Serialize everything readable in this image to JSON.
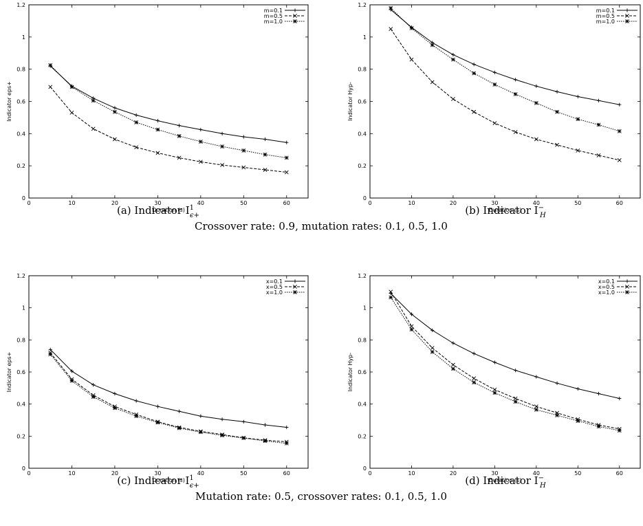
{
  "chart_data": [
    {
      "type": "line",
      "caption": "(a) Indicator I",
      "caption_sup": "1",
      "caption_sub": "ϵ+",
      "xlabel": "Duration (s)",
      "ylabel": "Indicator eps+",
      "xlim": [
        0,
        65
      ],
      "ylim": [
        0,
        1.2
      ],
      "xticks": [
        "0",
        "10",
        "20",
        "30",
        "40",
        "50",
        "60"
      ],
      "yticks": [
        "0",
        "0.2",
        "0.4",
        "0.6",
        "0.8",
        "1",
        "1.2"
      ],
      "legend_position": "top-right",
      "x": [
        5,
        10,
        15,
        20,
        25,
        30,
        35,
        40,
        45,
        50,
        55,
        60
      ],
      "series": [
        {
          "name": "m=0.1",
          "marker": "plus",
          "dash": "solid",
          "values": [
            0.82,
            0.695,
            0.62,
            0.56,
            0.515,
            0.48,
            0.45,
            0.425,
            0.4,
            0.38,
            0.365,
            0.345
          ]
        },
        {
          "name": "m=0.5",
          "marker": "x",
          "dash": "dashed",
          "values": [
            0.69,
            0.53,
            0.43,
            0.365,
            0.315,
            0.28,
            0.25,
            0.225,
            0.205,
            0.19,
            0.175,
            0.16
          ]
        },
        {
          "name": "m=1.0",
          "marker": "star",
          "dash": "dotted",
          "values": [
            0.825,
            0.69,
            0.605,
            0.535,
            0.47,
            0.425,
            0.385,
            0.35,
            0.32,
            0.295,
            0.27,
            0.25
          ]
        }
      ]
    },
    {
      "type": "line",
      "caption": "(b) Indicator I",
      "caption_sup": "−",
      "caption_sub": "H",
      "xlabel": "Duration (s)",
      "ylabel": "Indicator Hyp-",
      "xlim": [
        0,
        65
      ],
      "ylim": [
        0,
        1.2
      ],
      "xticks": [
        "0",
        "10",
        "20",
        "30",
        "40",
        "50",
        "60"
      ],
      "yticks": [
        "0",
        "0.2",
        "0.4",
        "0.6",
        "0.8",
        "1",
        "1.2"
      ],
      "legend_position": "top-right",
      "x": [
        5,
        10,
        15,
        20,
        25,
        30,
        35,
        40,
        45,
        50,
        55,
        60
      ],
      "series": [
        {
          "name": "m=0.1",
          "marker": "plus",
          "dash": "solid",
          "values": [
            1.17,
            1.06,
            0.965,
            0.89,
            0.83,
            0.78,
            0.735,
            0.695,
            0.66,
            0.63,
            0.605,
            0.58
          ]
        },
        {
          "name": "m=0.5",
          "marker": "x",
          "dash": "dashed",
          "values": [
            1.05,
            0.86,
            0.72,
            0.615,
            0.535,
            0.465,
            0.41,
            0.365,
            0.33,
            0.295,
            0.265,
            0.235
          ]
        },
        {
          "name": "m=1.0",
          "marker": "star",
          "dash": "dotted",
          "values": [
            1.18,
            1.055,
            0.95,
            0.86,
            0.775,
            0.705,
            0.645,
            0.59,
            0.535,
            0.49,
            0.455,
            0.415
          ]
        }
      ]
    },
    {
      "type": "line",
      "caption": "(c) Indicator I",
      "caption_sup": "1",
      "caption_sub": "ϵ+",
      "xlabel": "Duration (s)",
      "ylabel": "Indicator eps+",
      "xlim": [
        0,
        65
      ],
      "ylim": [
        0,
        1.2
      ],
      "xticks": [
        "0",
        "10",
        "20",
        "30",
        "40",
        "50",
        "60"
      ],
      "yticks": [
        "0",
        "0.2",
        "0.4",
        "0.6",
        "0.8",
        "1",
        "1.2"
      ],
      "legend_position": "top-right",
      "x": [
        5,
        10,
        15,
        20,
        25,
        30,
        35,
        40,
        45,
        50,
        55,
        60
      ],
      "series": [
        {
          "name": "x=0.1",
          "marker": "plus",
          "dash": "solid",
          "values": [
            0.74,
            0.605,
            0.52,
            0.465,
            0.42,
            0.385,
            0.355,
            0.325,
            0.305,
            0.29,
            0.27,
            0.255
          ]
        },
        {
          "name": "x=0.5",
          "marker": "x",
          "dash": "dashed",
          "values": [
            0.72,
            0.555,
            0.455,
            0.385,
            0.335,
            0.29,
            0.255,
            0.23,
            0.21,
            0.19,
            0.175,
            0.165
          ]
        },
        {
          "name": "x=1.0",
          "marker": "star",
          "dash": "dotted",
          "values": [
            0.71,
            0.545,
            0.445,
            0.375,
            0.325,
            0.285,
            0.25,
            0.225,
            0.205,
            0.188,
            0.17,
            0.155
          ]
        }
      ]
    },
    {
      "type": "line",
      "caption": "(d) Indicator I",
      "caption_sup": "−",
      "caption_sub": "H",
      "xlabel": "Duration (s)",
      "ylabel": "Indicator Hyp-",
      "xlim": [
        0,
        65
      ],
      "ylim": [
        0,
        1.2
      ],
      "xticks": [
        "0",
        "10",
        "20",
        "30",
        "40",
        "50",
        "60"
      ],
      "yticks": [
        "0",
        "0.2",
        "0.4",
        "0.6",
        "0.8",
        "1",
        "1.2"
      ],
      "legend_position": "top-right",
      "x": [
        5,
        10,
        15,
        20,
        25,
        30,
        35,
        40,
        45,
        50,
        55,
        60
      ],
      "series": [
        {
          "name": "x=0.1",
          "marker": "plus",
          "dash": "solid",
          "values": [
            1.09,
            0.96,
            0.86,
            0.78,
            0.715,
            0.66,
            0.61,
            0.57,
            0.53,
            0.495,
            0.465,
            0.435
          ]
        },
        {
          "name": "x=0.5",
          "marker": "x",
          "dash": "dashed",
          "values": [
            1.1,
            0.885,
            0.75,
            0.645,
            0.56,
            0.49,
            0.435,
            0.385,
            0.345,
            0.305,
            0.27,
            0.245
          ]
        },
        {
          "name": "x=1.0",
          "marker": "star",
          "dash": "dotted",
          "values": [
            1.065,
            0.865,
            0.725,
            0.62,
            0.535,
            0.47,
            0.415,
            0.365,
            0.33,
            0.295,
            0.26,
            0.235
          ]
        }
      ]
    }
  ],
  "row_captions": [
    "Crossover rate: 0.9, mutation rates: 0.1, 0.5, 1.0",
    "Mutation rate: 0.5, crossover rates: 0.1, 0.5, 1.0"
  ]
}
